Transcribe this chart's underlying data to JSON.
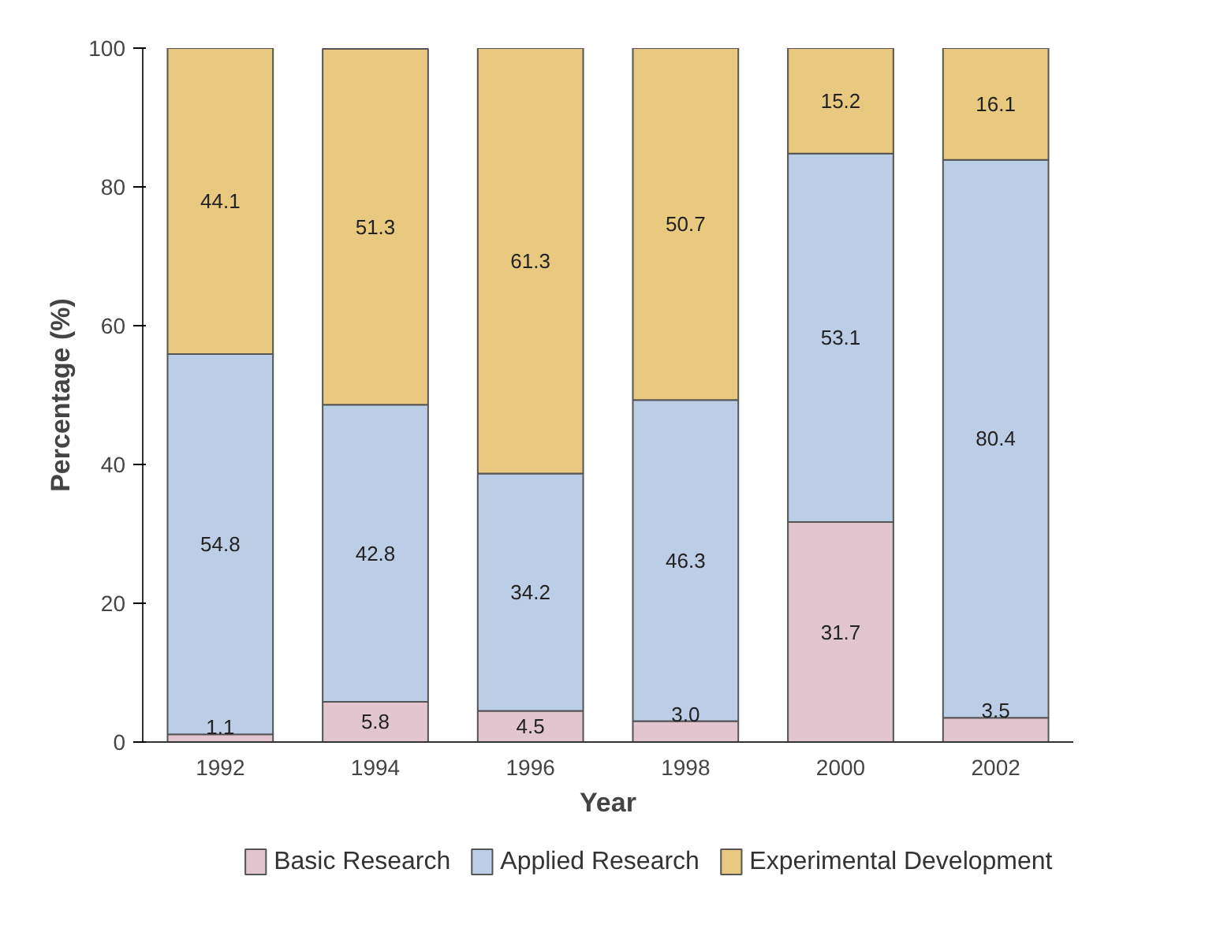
{
  "chart_data": {
    "type": "bar",
    "stacked": true,
    "xlabel": "Year",
    "ylabel": "Percentage (%)",
    "categories": [
      "1992",
      "1994",
      "1996",
      "1998",
      "2000",
      "2002"
    ],
    "series": [
      {
        "name": "Basic Research",
        "color": "#e2c6cf",
        "values": [
          1.1,
          5.8,
          4.5,
          3.0,
          31.7,
          3.5
        ],
        "value_labels": [
          "1.1",
          "5.8",
          "4.5",
          "3.0",
          "31.7",
          "3.5"
        ]
      },
      {
        "name": "Applied Research",
        "color": "#bccde6",
        "values": [
          54.8,
          42.8,
          34.2,
          46.3,
          53.1,
          80.4
        ],
        "value_labels": [
          "54.8",
          "42.8",
          "34.2",
          "46.3",
          "53.1",
          "80.4"
        ]
      },
      {
        "name": "Experimental Development",
        "color": "#e9c97f",
        "values": [
          44.1,
          51.3,
          61.3,
          50.7,
          15.2,
          16.1
        ],
        "value_labels": [
          "44.1",
          "51.3",
          "61.3",
          "50.7",
          "15.2",
          "16.1"
        ]
      }
    ],
    "ylim": [
      0,
      100
    ],
    "yticks": [
      0,
      20,
      40,
      60,
      80,
      100
    ],
    "grid": false,
    "legend": "bottom"
  }
}
